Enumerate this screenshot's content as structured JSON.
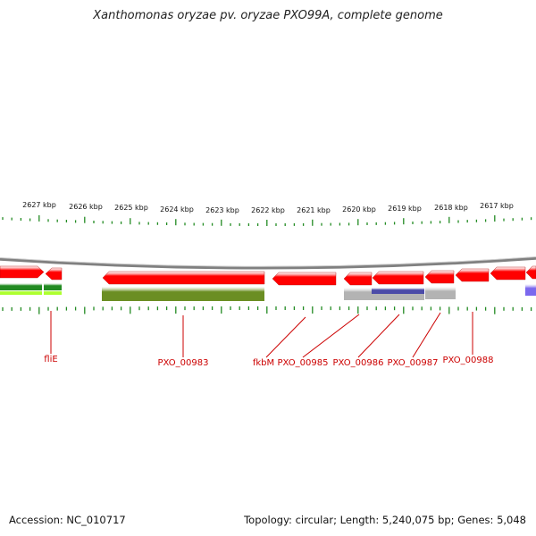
{
  "title": "Xanthomonas oryzae pv. oryzae PXO99A, complete genome",
  "ruler_labels": [
    "2627 kbp",
    "2626 kbp",
    "2625 kbp",
    "2624 kbp",
    "2623 kbp",
    "2622 kbp",
    "2621 kbp",
    "2620 kbp",
    "2619 kbp",
    "2618 kbp",
    "2617 kbp"
  ],
  "gene_labels": [
    "fliE",
    "PXO_00983",
    "fkbM",
    "PXO_00985",
    "PXO_00986",
    "PXO_00987",
    "PXO_00988"
  ],
  "footer": {
    "accession": "Accession: NC_010717",
    "summary": "Topology: circular; Length: 5,240,075 bp; Genes: 5,048"
  },
  "colors": {
    "cds": "#ff0000",
    "olive": "#6b8e23",
    "green": "#228b22",
    "lightgreen": "#adff2f",
    "grey": "#b3b3b3",
    "navy": "#4b4ba8",
    "violet": "#7b68ee",
    "backbone": "#808080",
    "ticks": "#228b22",
    "label": "#cc0000"
  }
}
